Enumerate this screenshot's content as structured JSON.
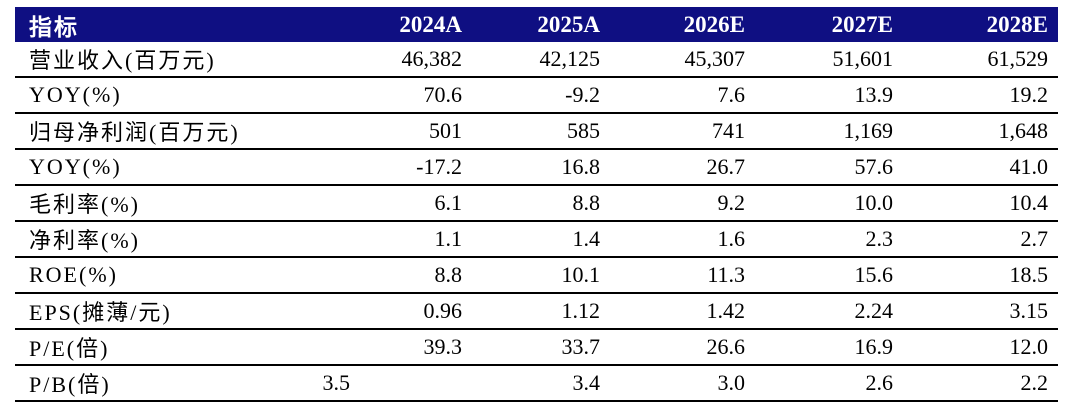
{
  "colors": {
    "header_bg": "#0f0f82",
    "header_text": "#ffffff",
    "row_line": "#000000",
    "body_text": "#000000"
  },
  "table": {
    "columns": [
      "指标",
      "2024A",
      "2025A",
      "2026E",
      "2027E",
      "2028E"
    ],
    "rows": [
      {
        "label": "营业收入(百万元)",
        "values": [
          "46,382",
          "42,125",
          "45,307",
          "51,601",
          "61,529"
        ]
      },
      {
        "label": "YOY(%)",
        "values": [
          "70.6",
          "-9.2",
          "7.6",
          "13.9",
          "19.2"
        ]
      },
      {
        "label": "归母净利润(百万元)",
        "values": [
          "501",
          "585",
          "741",
          "1,169",
          "1,648"
        ]
      },
      {
        "label": "YOY(%)",
        "values": [
          "-17.2",
          "16.8",
          "26.7",
          "57.6",
          "41.0"
        ]
      },
      {
        "label": "毛利率(%)",
        "values": [
          "6.1",
          "8.8",
          "9.2",
          "10.0",
          "10.4"
        ]
      },
      {
        "label": "净利率(%)",
        "values": [
          "1.1",
          "1.4",
          "1.6",
          "2.3",
          "2.7"
        ]
      },
      {
        "label": "ROE(%)",
        "values": [
          "8.8",
          "10.1",
          "11.3",
          "15.6",
          "18.5"
        ]
      },
      {
        "label": "EPS(摊薄/元)",
        "values": [
          "0.96",
          "1.12",
          "1.42",
          "2.24",
          "3.15"
        ]
      },
      {
        "label": "P/E(倍)",
        "values": [
          "39.3",
          "33.7",
          "26.6",
          "16.9",
          "12.0"
        ]
      },
      {
        "label": "P/B(倍)",
        "values": [
          "3.5",
          "3.4",
          "3.0",
          "2.6",
          "2.2"
        ]
      }
    ]
  },
  "chart_data": {
    "type": "table",
    "title": "财务指标预测表",
    "columns": [
      "指标",
      "2024A",
      "2025A",
      "2026E",
      "2027E",
      "2028E"
    ],
    "rows": [
      [
        "营业收入(百万元)",
        46382,
        42125,
        45307,
        51601,
        61529
      ],
      [
        "YOY(%)",
        70.6,
        -9.2,
        7.6,
        13.9,
        19.2
      ],
      [
        "归母净利润(百万元)",
        501,
        585,
        741,
        1169,
        1648
      ],
      [
        "YOY(%)",
        -17.2,
        16.8,
        26.7,
        57.6,
        41.0
      ],
      [
        "毛利率(%)",
        6.1,
        8.8,
        9.2,
        10.0,
        10.4
      ],
      [
        "净利率(%)",
        1.1,
        1.4,
        1.6,
        2.3,
        2.7
      ],
      [
        "ROE(%)",
        8.8,
        10.1,
        11.3,
        15.6,
        18.5
      ],
      [
        "EPS(摊薄/元)",
        0.96,
        1.12,
        1.42,
        2.24,
        3.15
      ],
      [
        "P/E(倍)",
        39.3,
        33.7,
        26.6,
        16.9,
        12.0
      ],
      [
        "P/B(倍)",
        3.5,
        3.4,
        3.0,
        2.6,
        2.2
      ]
    ]
  }
}
